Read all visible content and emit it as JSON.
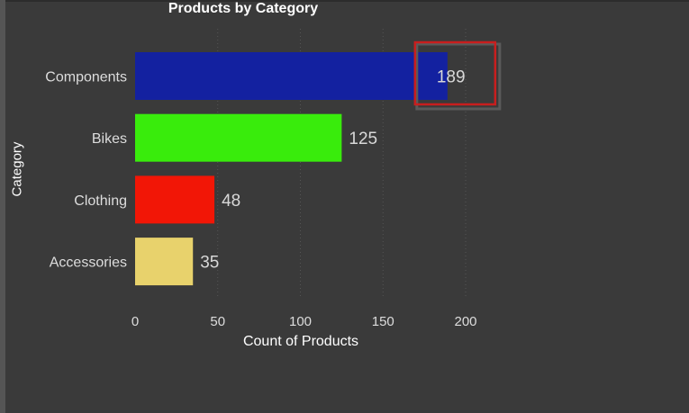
{
  "chart_data": {
    "type": "bar",
    "orientation": "horizontal",
    "title": "Products by Category",
    "xlabel": "Count of Products",
    "ylabel": "Category",
    "categories": [
      "Components",
      "Bikes",
      "Clothing",
      "Accessories"
    ],
    "values": [
      189,
      125,
      48,
      35
    ],
    "colors": [
      "#1321a0",
      "#39ec0c",
      "#f21606",
      "#e8d26c"
    ],
    "xlim": [
      0,
      200
    ],
    "xticks": [
      0,
      50,
      100,
      150,
      200
    ],
    "grid": "vertical dotted",
    "highlighted_category": "Components",
    "highlight_color": "#c81e1e"
  },
  "theme": {
    "background": "#3a3a3a",
    "text": "#ffffff",
    "label_text": "#dddddd"
  }
}
